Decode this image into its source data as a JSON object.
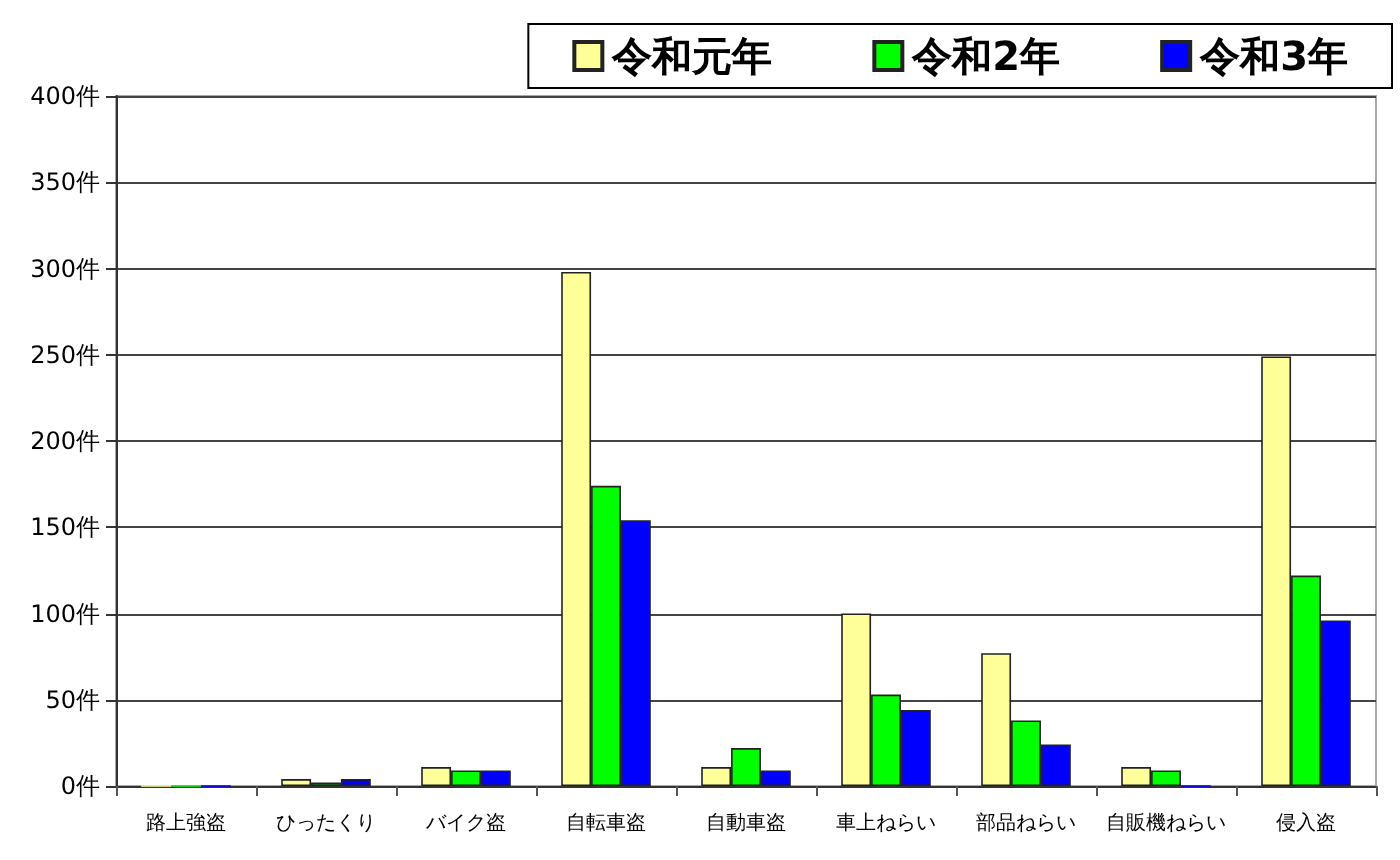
{
  "chart_data": {
    "type": "bar",
    "categories": [
      "路上強盗",
      "ひったくり",
      "バイク盗",
      "自転車盗",
      "自動車盗",
      "車上ねらい",
      "部品ねらい",
      "自販機ねらい",
      "侵入盗"
    ],
    "series": [
      {
        "name": "令和元年",
        "color": "#ffff99",
        "values": [
          0,
          4,
          11,
          298,
          11,
          100,
          77,
          11,
          249
        ]
      },
      {
        "name": "令和2年",
        "color": "#00ff00",
        "values": [
          0,
          2,
          9,
          174,
          22,
          53,
          38,
          9,
          122
        ]
      },
      {
        "name": "令和3年",
        "color": "#0000ff",
        "values": [
          0,
          4,
          9,
          154,
          9,
          44,
          24,
          0,
          96
        ]
      }
    ],
    "ylim": [
      0,
      400
    ],
    "yticks": [
      {
        "value": 0,
        "label": "0件"
      },
      {
        "value": 50,
        "label": "50件"
      },
      {
        "value": 100,
        "label": "100件"
      },
      {
        "value": 150,
        "label": "150件"
      },
      {
        "value": 200,
        "label": "200件"
      },
      {
        "value": 250,
        "label": "250件"
      },
      {
        "value": 300,
        "label": "300件"
      },
      {
        "value": 350,
        "label": "350件"
      },
      {
        "value": 400,
        "label": "400件"
      }
    ],
    "grid": "y",
    "legend": "top right"
  }
}
